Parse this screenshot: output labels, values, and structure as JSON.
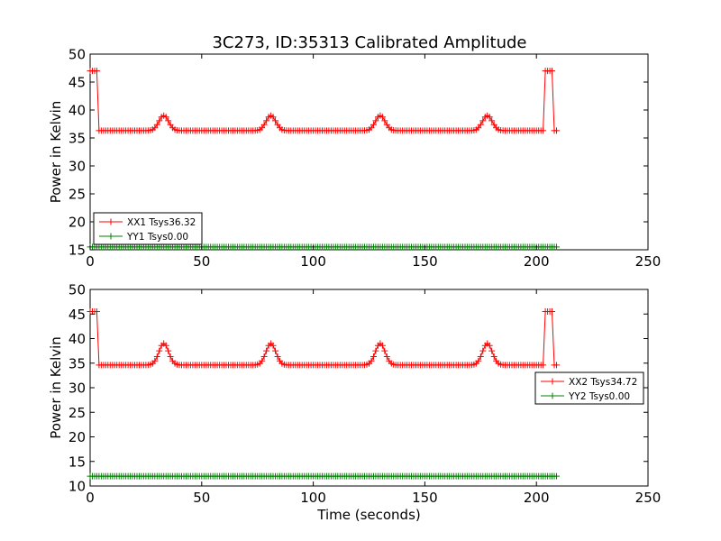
{
  "title": "3C273, ID:35313 Calibrated Amplitude",
  "colors": {
    "red": "#ff0000",
    "green": "#008000"
  },
  "chart_data": [
    {
      "type": "line",
      "title": "3C273, ID:35313 Calibrated Amplitude",
      "xlabel": "",
      "ylabel": "Power in Kelvin",
      "xlim": [
        0,
        250
      ],
      "ylim": [
        15,
        50
      ],
      "xticks": [
        "0",
        "50",
        "100",
        "150",
        "200",
        "250"
      ],
      "yticks": [
        "15",
        "20",
        "25",
        "30",
        "35",
        "40",
        "45",
        "50"
      ],
      "legend_position": "lower-left",
      "grid": false,
      "series": [
        {
          "name": "XX1 Tsys36.32",
          "color": "#ff0000",
          "baseline": 36.3,
          "spike_value": 47.0,
          "spike_at_start": [
            0,
            3
          ],
          "spike_at_end": [
            204,
            207
          ],
          "bump_peak": 39.0,
          "bump_centers": [
            33,
            81,
            130,
            178
          ],
          "x_end": 209
        },
        {
          "name": "YY1 Tsys0.00",
          "color": "#008000",
          "constant": 15.5,
          "x_end": 209
        }
      ]
    },
    {
      "type": "line",
      "title": "",
      "xlabel": "Time (seconds)",
      "ylabel": "Power in Kelvin",
      "xlim": [
        0,
        250
      ],
      "ylim": [
        10,
        50
      ],
      "xticks": [
        "0",
        "50",
        "100",
        "150",
        "200",
        "250"
      ],
      "yticks": [
        "10",
        "15",
        "20",
        "25",
        "30",
        "35",
        "40",
        "45",
        "50"
      ],
      "legend_position": "center-right",
      "grid": false,
      "series": [
        {
          "name": "XX2 Tsys34.72",
          "color": "#ff0000",
          "baseline": 34.6,
          "spike_value": 45.5,
          "spike_at_start": [
            0,
            3
          ],
          "spike_at_end": [
            204,
            207
          ],
          "bump_peak": 39.0,
          "bump_centers": [
            33,
            81,
            130,
            178
          ],
          "x_end": 209
        },
        {
          "name": "YY2 Tsys0.00",
          "color": "#008000",
          "constant": 12.0,
          "x_end": 209
        }
      ]
    }
  ]
}
